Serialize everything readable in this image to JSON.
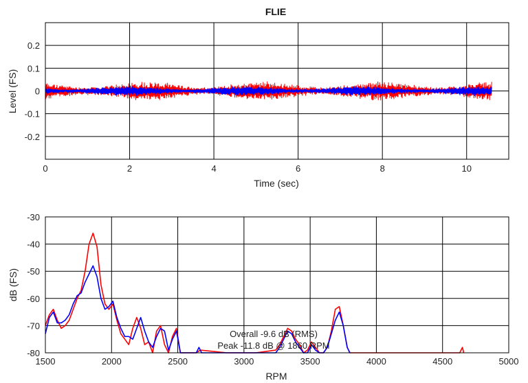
{
  "figure_title": "FLIE",
  "chart_data": [
    {
      "type": "line",
      "title": "FLIE",
      "xlabel": "Time (sec)",
      "ylabel": "Level (FS)",
      "xlim": [
        0,
        11
      ],
      "ylim": [
        -0.3,
        0.3
      ],
      "xticks": [
        0,
        2,
        4,
        6,
        8,
        10
      ],
      "yticks": [
        0.2,
        0.1,
        0,
        -0.1,
        -0.2
      ],
      "grid": true,
      "series": [
        {
          "color": "#ff0000",
          "x_range": [
            0,
            10.6
          ],
          "envelope": 0.035
        },
        {
          "color": "#0000ff",
          "x_range": [
            0,
            10.6
          ],
          "envelope": 0.018
        }
      ]
    },
    {
      "type": "line",
      "xlabel": "RPM",
      "ylabel": "dB (FS)",
      "xlim": [
        1500,
        5000
      ],
      "ylim": [
        -80,
        -30
      ],
      "xticks": [
        1500,
        2000,
        2500,
        3000,
        3500,
        4000,
        4500,
        5000
      ],
      "yticks": [
        -30,
        -40,
        -50,
        -60,
        -70,
        -80
      ],
      "grid": true,
      "annotations": [
        "Overall -9.6 dB (RMS)",
        "Peak -11.8 dB @ 1860 RPM"
      ],
      "series": [
        {
          "color": "#ff0000",
          "x": [
            1500,
            1530,
            1560,
            1590,
            1620,
            1650,
            1680,
            1710,
            1740,
            1770,
            1800,
            1830,
            1860,
            1890,
            1920,
            1950,
            1980,
            2010,
            2040,
            2070,
            2100,
            2130,
            2160,
            2190,
            2220,
            2250,
            2280,
            2310,
            2340,
            2370,
            2400,
            2430,
            2460,
            2490,
            2520,
            2640,
            2670,
            2870,
            3090,
            3240,
            3270,
            3300,
            3330,
            3360,
            3390,
            3420,
            3450,
            3480,
            3510,
            3540,
            3570,
            3600,
            3630,
            3660,
            3690,
            3720,
            3750,
            3780,
            3800,
            4630,
            4650,
            4660
          ],
          "y": [
            -70,
            -66,
            -64,
            -68,
            -71,
            -70,
            -68,
            -64,
            -60,
            -57,
            -50,
            -40,
            -36,
            -41,
            -55,
            -62,
            -64,
            -62,
            -68,
            -73,
            -75,
            -77,
            -71,
            -67,
            -71,
            -77,
            -76,
            -80,
            -72,
            -70,
            -77,
            -80,
            -74,
            -71,
            -80,
            -80,
            -79,
            -80,
            -80,
            -79,
            -77,
            -74,
            -71,
            -72,
            -75,
            -77,
            -80,
            -79,
            -76,
            -78,
            -80,
            -80,
            -78,
            -72,
            -64,
            -63,
            -70,
            -78,
            -80,
            -80,
            -78,
            -80
          ]
        },
        {
          "color": "#0000ff",
          "x": [
            1500,
            1530,
            1560,
            1590,
            1620,
            1650,
            1680,
            1710,
            1740,
            1770,
            1800,
            1830,
            1860,
            1890,
            1920,
            1950,
            1980,
            2010,
            2040,
            2070,
            2100,
            2130,
            2160,
            2190,
            2220,
            2250,
            2280,
            2310,
            2340,
            2370,
            2400,
            2430,
            2460,
            2490,
            2520,
            2640,
            2660,
            2680,
            3240,
            3270,
            3300,
            3330,
            3360,
            3390,
            3420,
            3450,
            3480,
            3510,
            3540,
            3570,
            3600,
            3630,
            3660,
            3690,
            3720,
            3750,
            3780,
            3800
          ],
          "y": [
            -73,
            -67,
            -65,
            -69,
            -69,
            -68,
            -66,
            -62,
            -59,
            -58,
            -54,
            -51,
            -48,
            -52,
            -60,
            -64,
            -63,
            -61,
            -67,
            -71,
            -74,
            -74,
            -75,
            -71,
            -67,
            -72,
            -76,
            -78,
            -74,
            -71,
            -72,
            -79,
            -75,
            -72,
            -80,
            -80,
            -78,
            -80,
            -80,
            -78,
            -75,
            -72,
            -73,
            -76,
            -78,
            -80,
            -80,
            -77,
            -79,
            -80,
            -80,
            -78,
            -73,
            -68,
            -65,
            -70,
            -78,
            -80
          ]
        }
      ]
    }
  ]
}
